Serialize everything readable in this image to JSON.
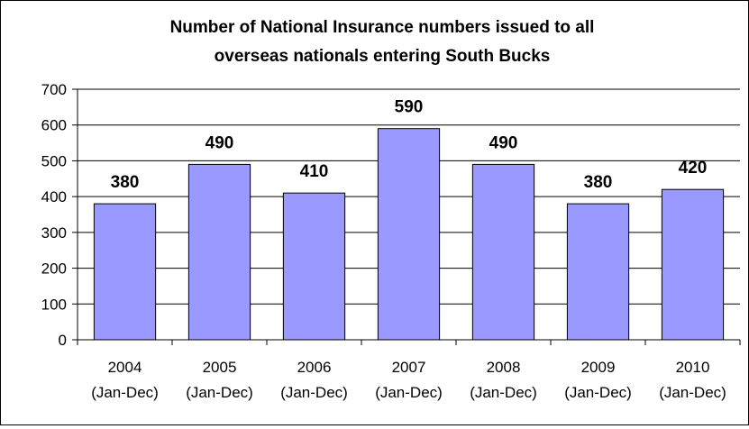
{
  "chart_data": {
    "type": "bar",
    "title": "Number of National Insurance numbers issued to all overseas nationals entering South Bucks",
    "title_lines": [
      "Number of National Insurance numbers issued to all",
      "overseas nationals entering South Bucks"
    ],
    "xlabel": "",
    "ylabel": "",
    "categories": [
      "2004 (Jan-Dec)",
      "2005 (Jan-Dec)",
      "2006 (Jan-Dec)",
      "2007 (Jan-Dec)",
      "2008 (Jan-Dec)",
      "2009 (Jan-Dec)",
      "2010 (Jan-Dec)"
    ],
    "category_lines": [
      [
        "2004",
        "(Jan-Dec)"
      ],
      [
        "2005",
        "(Jan-Dec)"
      ],
      [
        "2006",
        "(Jan-Dec)"
      ],
      [
        "2007",
        "(Jan-Dec)"
      ],
      [
        "2008",
        "(Jan-Dec)"
      ],
      [
        "2009",
        "(Jan-Dec)"
      ],
      [
        "2010",
        "(Jan-Dec)"
      ]
    ],
    "values": [
      380,
      490,
      410,
      590,
      490,
      380,
      420
    ],
    "ylim": [
      0,
      700
    ],
    "yticks": [
      0,
      100,
      200,
      300,
      400,
      500,
      600,
      700
    ],
    "grid": true,
    "legend": "none",
    "data_labels": true,
    "colors": {
      "bar_fill": "#9999ff",
      "bar_stroke": "#000000",
      "grid": "#000000",
      "axis": "#000000"
    }
  }
}
